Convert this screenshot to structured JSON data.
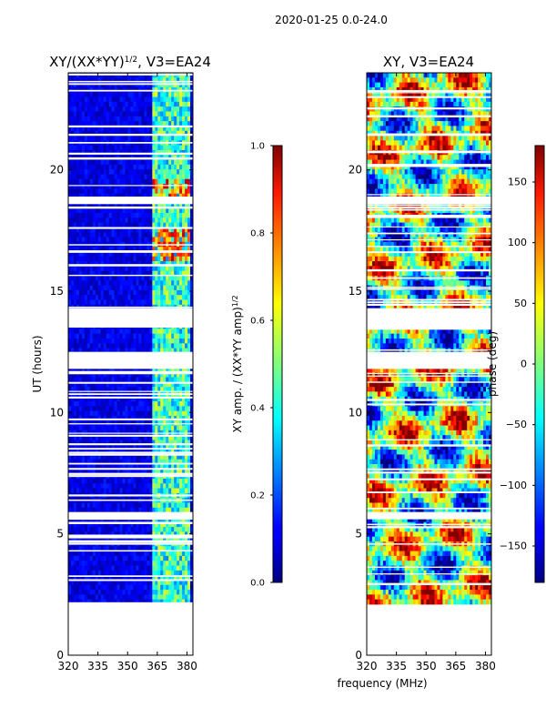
{
  "suptitle": "2020-01-25 0.0-24.0",
  "xlabel": "frequency (MHz)",
  "chart_data": [
    {
      "type": "heatmap",
      "title_main": "XY/(XX*YY)",
      "title_exp": "1/2",
      "title_suffix": ", V3=EA24",
      "ylabel": "UT (hours)",
      "xlim": [
        320,
        383
      ],
      "ylim": [
        0,
        24
      ],
      "xticks": [
        320,
        335,
        350,
        365,
        380
      ],
      "yticks": [
        0,
        5,
        10,
        15,
        20
      ],
      "data_start_hour": 2.1,
      "colormap": "jet",
      "colorbar": {
        "label_main": "XY amp. / (XX*YY amp)",
        "label_exp": "1/2",
        "range": [
          0.0,
          1.0
        ],
        "ticks": [
          "0.0",
          "0.2",
          "0.4",
          "0.6",
          "0.8",
          "1.0"
        ]
      }
    },
    {
      "type": "heatmap",
      "title": "XY, V3=EA24",
      "xlim": [
        320,
        383
      ],
      "ylim": [
        0,
        24
      ],
      "xticks": [
        320,
        335,
        350,
        365,
        380
      ],
      "yticks": [
        0,
        5,
        10,
        15,
        20
      ],
      "data_start_hour": 2.1,
      "colormap": "jet",
      "colorbar": {
        "label": "phase (deg)",
        "range": [
          -180,
          180
        ],
        "ticks": [
          "150",
          "100",
          "50",
          "0",
          "−50",
          "−100",
          "−150"
        ]
      }
    }
  ]
}
